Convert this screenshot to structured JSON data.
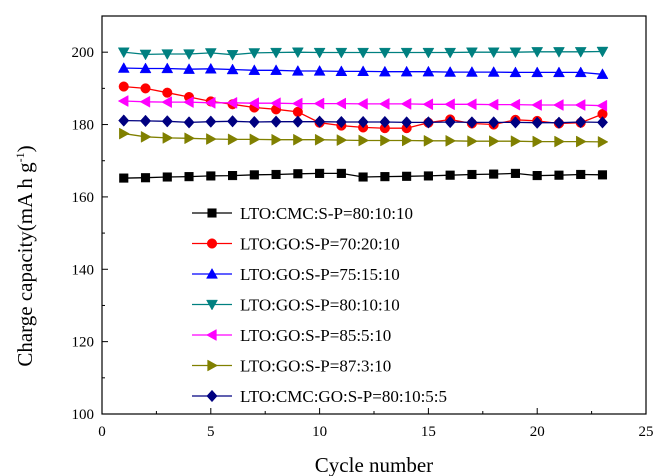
{
  "chart_data": {
    "type": "line",
    "xlabel": "Cycle number",
    "ylabel_main": "Charge capacity(mA h g",
    "ylabel_sup": "-1",
    "ylabel_close": ")",
    "xlim": [
      0,
      25
    ],
    "ylim": [
      100,
      210
    ],
    "xticks": [
      0,
      5,
      10,
      15,
      20,
      25
    ],
    "yticks": [
      100,
      120,
      140,
      160,
      180,
      200
    ],
    "grid": false,
    "legend_position": "bottom-center",
    "series": [
      {
        "name": "LTO:CMC:S-P=80:10:10",
        "color": "#000000",
        "marker": "square",
        "x": [
          1,
          2,
          3,
          4,
          5,
          6,
          7,
          8,
          9,
          10,
          11,
          12,
          13,
          14,
          15,
          16,
          17,
          18,
          19,
          20,
          21,
          22,
          23
        ],
        "y": [
          165.2,
          165.3,
          165.5,
          165.6,
          165.8,
          165.9,
          166.1,
          166.2,
          166.4,
          166.5,
          166.5,
          165.5,
          165.6,
          165.7,
          165.8,
          166.0,
          166.2,
          166.3,
          166.5,
          165.9,
          166.0,
          166.2,
          166.1
        ]
      },
      {
        "name": "LTO:GO:S-P=70:20:10",
        "color": "#ff0000",
        "marker": "circle",
        "x": [
          1,
          2,
          3,
          4,
          5,
          6,
          7,
          8,
          9,
          10,
          11,
          12,
          13,
          14,
          15,
          16,
          17,
          18,
          19,
          20,
          21,
          22,
          23
        ],
        "y": [
          190.5,
          190.0,
          188.8,
          187.6,
          186.4,
          185.6,
          184.7,
          184.2,
          183.5,
          180.5,
          179.7,
          179.2,
          179.0,
          179.0,
          180.5,
          181.4,
          180.3,
          180.0,
          181.3,
          181.0,
          180.3,
          180.5,
          182.9
        ]
      },
      {
        "name": "LTO:GO:S-P=75:15:10",
        "color": "#0000ff",
        "marker": "triangle-up",
        "x": [
          1,
          2,
          3,
          4,
          5,
          6,
          7,
          8,
          9,
          10,
          11,
          12,
          13,
          14,
          15,
          16,
          17,
          18,
          19,
          20,
          21,
          22,
          23
        ],
        "y": [
          195.6,
          195.5,
          195.5,
          195.3,
          195.4,
          195.2,
          195.0,
          195.0,
          194.8,
          194.8,
          194.7,
          194.7,
          194.6,
          194.6,
          194.6,
          194.5,
          194.5,
          194.5,
          194.4,
          194.4,
          194.4,
          194.4,
          193.9
        ]
      },
      {
        "name": "LTO:GO:S-P=80:10:10",
        "color": "#008080",
        "marker": "triangle-down",
        "x": [
          1,
          2,
          3,
          4,
          5,
          6,
          7,
          8,
          9,
          10,
          11,
          12,
          13,
          14,
          15,
          16,
          17,
          18,
          19,
          20,
          21,
          22,
          23
        ],
        "y": [
          200.0,
          199.4,
          199.5,
          199.5,
          199.8,
          199.3,
          199.8,
          199.9,
          200.0,
          199.9,
          199.9,
          199.9,
          199.9,
          199.9,
          199.9,
          199.9,
          200.0,
          200.0,
          200.0,
          200.1,
          200.1,
          200.1,
          200.2
        ]
      },
      {
        "name": "LTO:GO:S-P=85:5:10",
        "color": "#ff00ff",
        "marker": "triangle-left",
        "x": [
          1,
          2,
          3,
          4,
          5,
          6,
          7,
          8,
          9,
          10,
          11,
          12,
          13,
          14,
          15,
          16,
          17,
          18,
          19,
          20,
          21,
          22,
          23
        ],
        "y": [
          186.5,
          186.3,
          186.2,
          186.2,
          186.0,
          186.0,
          185.9,
          185.9,
          185.8,
          185.8,
          185.8,
          185.7,
          185.7,
          185.7,
          185.6,
          185.6,
          185.6,
          185.5,
          185.5,
          185.4,
          185.4,
          185.4,
          185.2
        ]
      },
      {
        "name": "LTO:GO:S-P=87:3:10",
        "color": "#808000",
        "marker": "triangle-right",
        "x": [
          1,
          2,
          3,
          4,
          5,
          6,
          7,
          8,
          9,
          10,
          11,
          12,
          13,
          14,
          15,
          16,
          17,
          18,
          19,
          20,
          21,
          22,
          23
        ],
        "y": [
          177.5,
          176.6,
          176.3,
          176.2,
          176.0,
          175.9,
          175.9,
          175.8,
          175.8,
          175.8,
          175.7,
          175.6,
          175.6,
          175.6,
          175.5,
          175.5,
          175.4,
          175.4,
          175.4,
          175.3,
          175.3,
          175.3,
          175.2
        ]
      },
      {
        "name": "LTO:CMC:GO:S-P=80:10:5:5",
        "color": "#000080",
        "marker": "diamond",
        "x": [
          1,
          2,
          3,
          4,
          5,
          6,
          7,
          8,
          9,
          10,
          11,
          12,
          13,
          14,
          15,
          16,
          17,
          18,
          19,
          20,
          21,
          22,
          23
        ],
        "y": [
          181.1,
          181.0,
          180.9,
          180.6,
          180.8,
          180.9,
          180.7,
          180.8,
          180.8,
          180.8,
          180.7,
          180.7,
          180.7,
          180.6,
          180.6,
          180.7,
          180.6,
          180.6,
          180.6,
          180.5,
          180.5,
          180.7,
          180.6
        ]
      }
    ]
  }
}
